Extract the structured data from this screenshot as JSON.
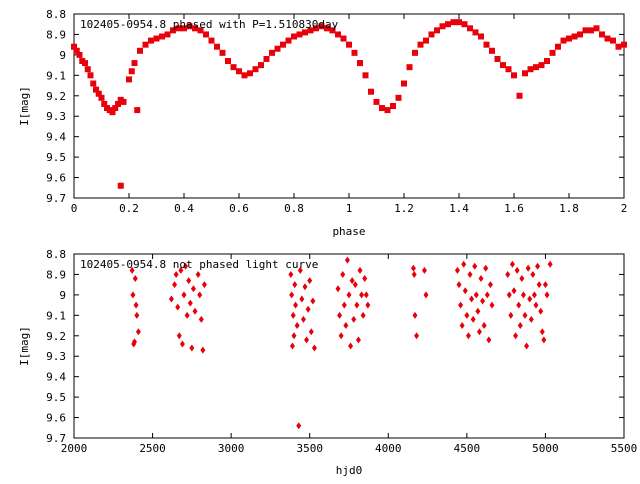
{
  "chart_data": [
    {
      "type": "scatter",
      "title": "102405-0954.8 phased with P=1.510830day",
      "xlabel": "phase",
      "ylabel": "I[mag]",
      "xlim": [
        0,
        2
      ],
      "ylim": [
        9.7,
        8.8
      ],
      "y_inverted": true,
      "xticks": [
        0,
        0.2,
        0.4,
        0.6,
        0.8,
        1,
        1.2,
        1.4,
        1.6,
        1.8,
        2
      ],
      "xtick_labels": [
        "0",
        "0.2",
        "0.4",
        "0.6",
        "0.8",
        "1",
        "1.2",
        "1.4",
        "1.6",
        "1.8",
        "2"
      ],
      "yticks": [
        8.8,
        8.9,
        9.0,
        9.1,
        9.2,
        9.3,
        9.4,
        9.5,
        9.6,
        9.7
      ],
      "ytick_labels": [
        "8.8",
        "8.9",
        "9",
        "9.1",
        "9.2",
        "9.3",
        "9.4",
        "9.5",
        "9.6",
        "9.7"
      ],
      "grid": false,
      "color": "#e8000b",
      "marker": "square",
      "points": [
        [
          0.0,
          8.96
        ],
        [
          0.01,
          8.98
        ],
        [
          0.02,
          9.0
        ],
        [
          0.03,
          9.03
        ],
        [
          0.04,
          9.04
        ],
        [
          0.05,
          9.07
        ],
        [
          0.06,
          9.1
        ],
        [
          0.07,
          9.14
        ],
        [
          0.08,
          9.17
        ],
        [
          0.09,
          9.19
        ],
        [
          0.1,
          9.21
        ],
        [
          0.11,
          9.24
        ],
        [
          0.12,
          9.26
        ],
        [
          0.13,
          9.27
        ],
        [
          0.14,
          9.28
        ],
        [
          0.15,
          9.26
        ],
        [
          0.16,
          9.24
        ],
        [
          0.17,
          9.22
        ],
        [
          0.18,
          9.23
        ],
        [
          0.17,
          9.64
        ],
        [
          0.2,
          9.12
        ],
        [
          0.21,
          9.08
        ],
        [
          0.22,
          9.04
        ],
        [
          0.23,
          9.27
        ],
        [
          0.24,
          8.98
        ],
        [
          0.26,
          8.95
        ],
        [
          0.28,
          8.93
        ],
        [
          0.3,
          8.92
        ],
        [
          0.32,
          8.91
        ],
        [
          0.34,
          8.9
        ],
        [
          0.36,
          8.88
        ],
        [
          0.38,
          8.87
        ],
        [
          0.4,
          8.87
        ],
        [
          0.42,
          8.86
        ],
        [
          0.44,
          8.87
        ],
        [
          0.46,
          8.88
        ],
        [
          0.48,
          8.9
        ],
        [
          0.5,
          8.93
        ],
        [
          0.52,
          8.96
        ],
        [
          0.54,
          8.99
        ],
        [
          0.56,
          9.03
        ],
        [
          0.58,
          9.06
        ],
        [
          0.6,
          9.08
        ],
        [
          0.62,
          9.1
        ],
        [
          0.64,
          9.09
        ],
        [
          0.66,
          9.07
        ],
        [
          0.68,
          9.05
        ],
        [
          0.7,
          9.02
        ],
        [
          0.72,
          8.99
        ],
        [
          0.74,
          8.97
        ],
        [
          0.76,
          8.95
        ],
        [
          0.78,
          8.93
        ],
        [
          0.8,
          8.91
        ],
        [
          0.82,
          8.9
        ],
        [
          0.84,
          8.89
        ],
        [
          0.86,
          8.88
        ],
        [
          0.88,
          8.87
        ],
        [
          0.9,
          8.86
        ],
        [
          0.92,
          8.87
        ],
        [
          0.94,
          8.88
        ],
        [
          0.96,
          8.9
        ],
        [
          0.98,
          8.92
        ],
        [
          1.0,
          8.95
        ],
        [
          1.02,
          8.99
        ],
        [
          1.04,
          9.04
        ],
        [
          1.06,
          9.1
        ],
        [
          1.08,
          9.18
        ],
        [
          1.1,
          9.23
        ],
        [
          1.12,
          9.26
        ],
        [
          1.14,
          9.27
        ],
        [
          1.16,
          9.25
        ],
        [
          1.18,
          9.21
        ],
        [
          1.2,
          9.14
        ],
        [
          1.22,
          9.06
        ],
        [
          1.24,
          8.99
        ],
        [
          1.26,
          8.95
        ],
        [
          1.28,
          8.93
        ],
        [
          1.3,
          8.9
        ],
        [
          1.32,
          8.88
        ],
        [
          1.34,
          8.86
        ],
        [
          1.36,
          8.85
        ],
        [
          1.38,
          8.84
        ],
        [
          1.4,
          8.84
        ],
        [
          1.42,
          8.85
        ],
        [
          1.44,
          8.87
        ],
        [
          1.46,
          8.89
        ],
        [
          1.48,
          8.91
        ],
        [
          1.5,
          8.95
        ],
        [
          1.52,
          8.98
        ],
        [
          1.54,
          9.02
        ],
        [
          1.56,
          9.05
        ],
        [
          1.58,
          9.07
        ],
        [
          1.6,
          9.1
        ],
        [
          1.62,
          9.2
        ],
        [
          1.64,
          9.09
        ],
        [
          1.66,
          9.07
        ],
        [
          1.68,
          9.06
        ],
        [
          1.7,
          9.05
        ],
        [
          1.72,
          9.03
        ],
        [
          1.74,
          8.99
        ],
        [
          1.76,
          8.96
        ],
        [
          1.78,
          8.93
        ],
        [
          1.8,
          8.92
        ],
        [
          1.82,
          8.91
        ],
        [
          1.84,
          8.9
        ],
        [
          1.86,
          8.88
        ],
        [
          1.88,
          8.88
        ],
        [
          1.9,
          8.87
        ],
        [
          1.92,
          8.9
        ],
        [
          1.94,
          8.92
        ],
        [
          1.96,
          8.93
        ],
        [
          1.98,
          8.96
        ],
        [
          2.0,
          8.95
        ]
      ]
    },
    {
      "type": "scatter",
      "title": "102405-0954.8 not phased light curve",
      "xlabel": "hjd0",
      "ylabel": "I[mag]",
      "xlim": [
        2000,
        5500
      ],
      "ylim": [
        9.7,
        8.8
      ],
      "y_inverted": true,
      "xticks": [
        2000,
        2500,
        3000,
        3500,
        4000,
        4500,
        5000,
        5500
      ],
      "xtick_labels": [
        "2000",
        "2500",
        "3000",
        "3500",
        "4000",
        "4500",
        "5000",
        "5500"
      ],
      "yticks": [
        8.8,
        8.9,
        9.0,
        9.1,
        9.2,
        9.3,
        9.4,
        9.5,
        9.6,
        9.7
      ],
      "ytick_labels": [
        "8.8",
        "8.9",
        "9",
        "9.1",
        "9.2",
        "9.3",
        "9.4",
        "9.5",
        "9.6",
        "9.7"
      ],
      "grid": false,
      "color": "#e8000b",
      "marker": "diamond",
      "points": [
        [
          2370,
          8.88
        ],
        [
          2375,
          9.0
        ],
        [
          2380,
          9.24
        ],
        [
          2385,
          9.23
        ],
        [
          2390,
          8.92
        ],
        [
          2395,
          9.05
        ],
        [
          2400,
          9.1
        ],
        [
          2410,
          9.18
        ],
        [
          2620,
          9.02
        ],
        [
          2640,
          8.95
        ],
        [
          2650,
          8.9
        ],
        [
          2660,
          9.06
        ],
        [
          2670,
          9.2
        ],
        [
          2680,
          8.88
        ],
        [
          2690,
          9.24
        ],
        [
          2700,
          9.0
        ],
        [
          2710,
          8.86
        ],
        [
          2720,
          9.1
        ],
        [
          2730,
          8.93
        ],
        [
          2740,
          9.04
        ],
        [
          2750,
          9.26
        ],
        [
          2760,
          8.97
        ],
        [
          2770,
          9.08
        ],
        [
          2790,
          8.9
        ],
        [
          2800,
          9.0
        ],
        [
          2810,
          9.12
        ],
        [
          2820,
          9.27
        ],
        [
          2830,
          8.95
        ],
        [
          3380,
          8.9
        ],
        [
          3385,
          9.0
        ],
        [
          3390,
          9.25
        ],
        [
          3395,
          9.1
        ],
        [
          3400,
          9.2
        ],
        [
          3405,
          8.95
        ],
        [
          3410,
          9.05
        ],
        [
          3420,
          9.15
        ],
        [
          3430,
          9.64
        ],
        [
          3440,
          8.88
        ],
        [
          3450,
          9.02
        ],
        [
          3460,
          9.12
        ],
        [
          3470,
          8.96
        ],
        [
          3480,
          9.22
        ],
        [
          3490,
          9.07
        ],
        [
          3500,
          8.93
        ],
        [
          3510,
          9.18
        ],
        [
          3520,
          9.03
        ],
        [
          3530,
          9.26
        ],
        [
          3680,
          8.97
        ],
        [
          3690,
          9.1
        ],
        [
          3700,
          9.2
        ],
        [
          3710,
          8.9
        ],
        [
          3720,
          9.05
        ],
        [
          3730,
          9.15
        ],
        [
          3740,
          8.83
        ],
        [
          3750,
          9.0
        ],
        [
          3760,
          9.25
        ],
        [
          3770,
          8.93
        ],
        [
          3780,
          9.12
        ],
        [
          3790,
          8.95
        ],
        [
          3800,
          9.05
        ],
        [
          3810,
          9.22
        ],
        [
          3820,
          8.88
        ],
        [
          3830,
          9.0
        ],
        [
          3840,
          9.1
        ],
        [
          3850,
          8.92
        ],
        [
          3860,
          9.0
        ],
        [
          3870,
          9.05
        ],
        [
          4160,
          8.87
        ],
        [
          4165,
          8.9
        ],
        [
          4170,
          9.1
        ],
        [
          4180,
          9.2
        ],
        [
          4230,
          8.88
        ],
        [
          4240,
          9.0
        ],
        [
          4440,
          8.88
        ],
        [
          4450,
          8.95
        ],
        [
          4460,
          9.05
        ],
        [
          4470,
          9.15
        ],
        [
          4480,
          8.85
        ],
        [
          4490,
          8.98
        ],
        [
          4500,
          9.1
        ],
        [
          4510,
          9.2
        ],
        [
          4520,
          8.9
        ],
        [
          4530,
          9.02
        ],
        [
          4540,
          9.12
        ],
        [
          4550,
          8.86
        ],
        [
          4560,
          9.0
        ],
        [
          4570,
          9.08
        ],
        [
          4580,
          9.18
        ],
        [
          4590,
          8.92
        ],
        [
          4600,
          9.03
        ],
        [
          4610,
          9.15
        ],
        [
          4620,
          8.87
        ],
        [
          4630,
          9.0
        ],
        [
          4640,
          9.22
        ],
        [
          4650,
          8.95
        ],
        [
          4660,
          9.05
        ],
        [
          4760,
          8.9
        ],
        [
          4770,
          9.0
        ],
        [
          4780,
          9.1
        ],
        [
          4790,
          8.85
        ],
        [
          4800,
          8.98
        ],
        [
          4810,
          9.2
        ],
        [
          4820,
          8.88
        ],
        [
          4830,
          9.05
        ],
        [
          4840,
          9.15
        ],
        [
          4850,
          8.92
        ],
        [
          4860,
          9.0
        ],
        [
          4870,
          9.1
        ],
        [
          4880,
          9.25
        ],
        [
          4890,
          8.87
        ],
        [
          4900,
          9.02
        ],
        [
          4910,
          9.12
        ],
        [
          4920,
          8.9
        ],
        [
          4930,
          9.0
        ],
        [
          4940,
          9.05
        ],
        [
          4950,
          8.86
        ],
        [
          4960,
          8.95
        ],
        [
          4970,
          9.08
        ],
        [
          4980,
          9.18
        ],
        [
          4990,
          9.22
        ],
        [
          5000,
          8.95
        ],
        [
          5010,
          9.0
        ],
        [
          5030,
          8.85
        ]
      ]
    }
  ]
}
